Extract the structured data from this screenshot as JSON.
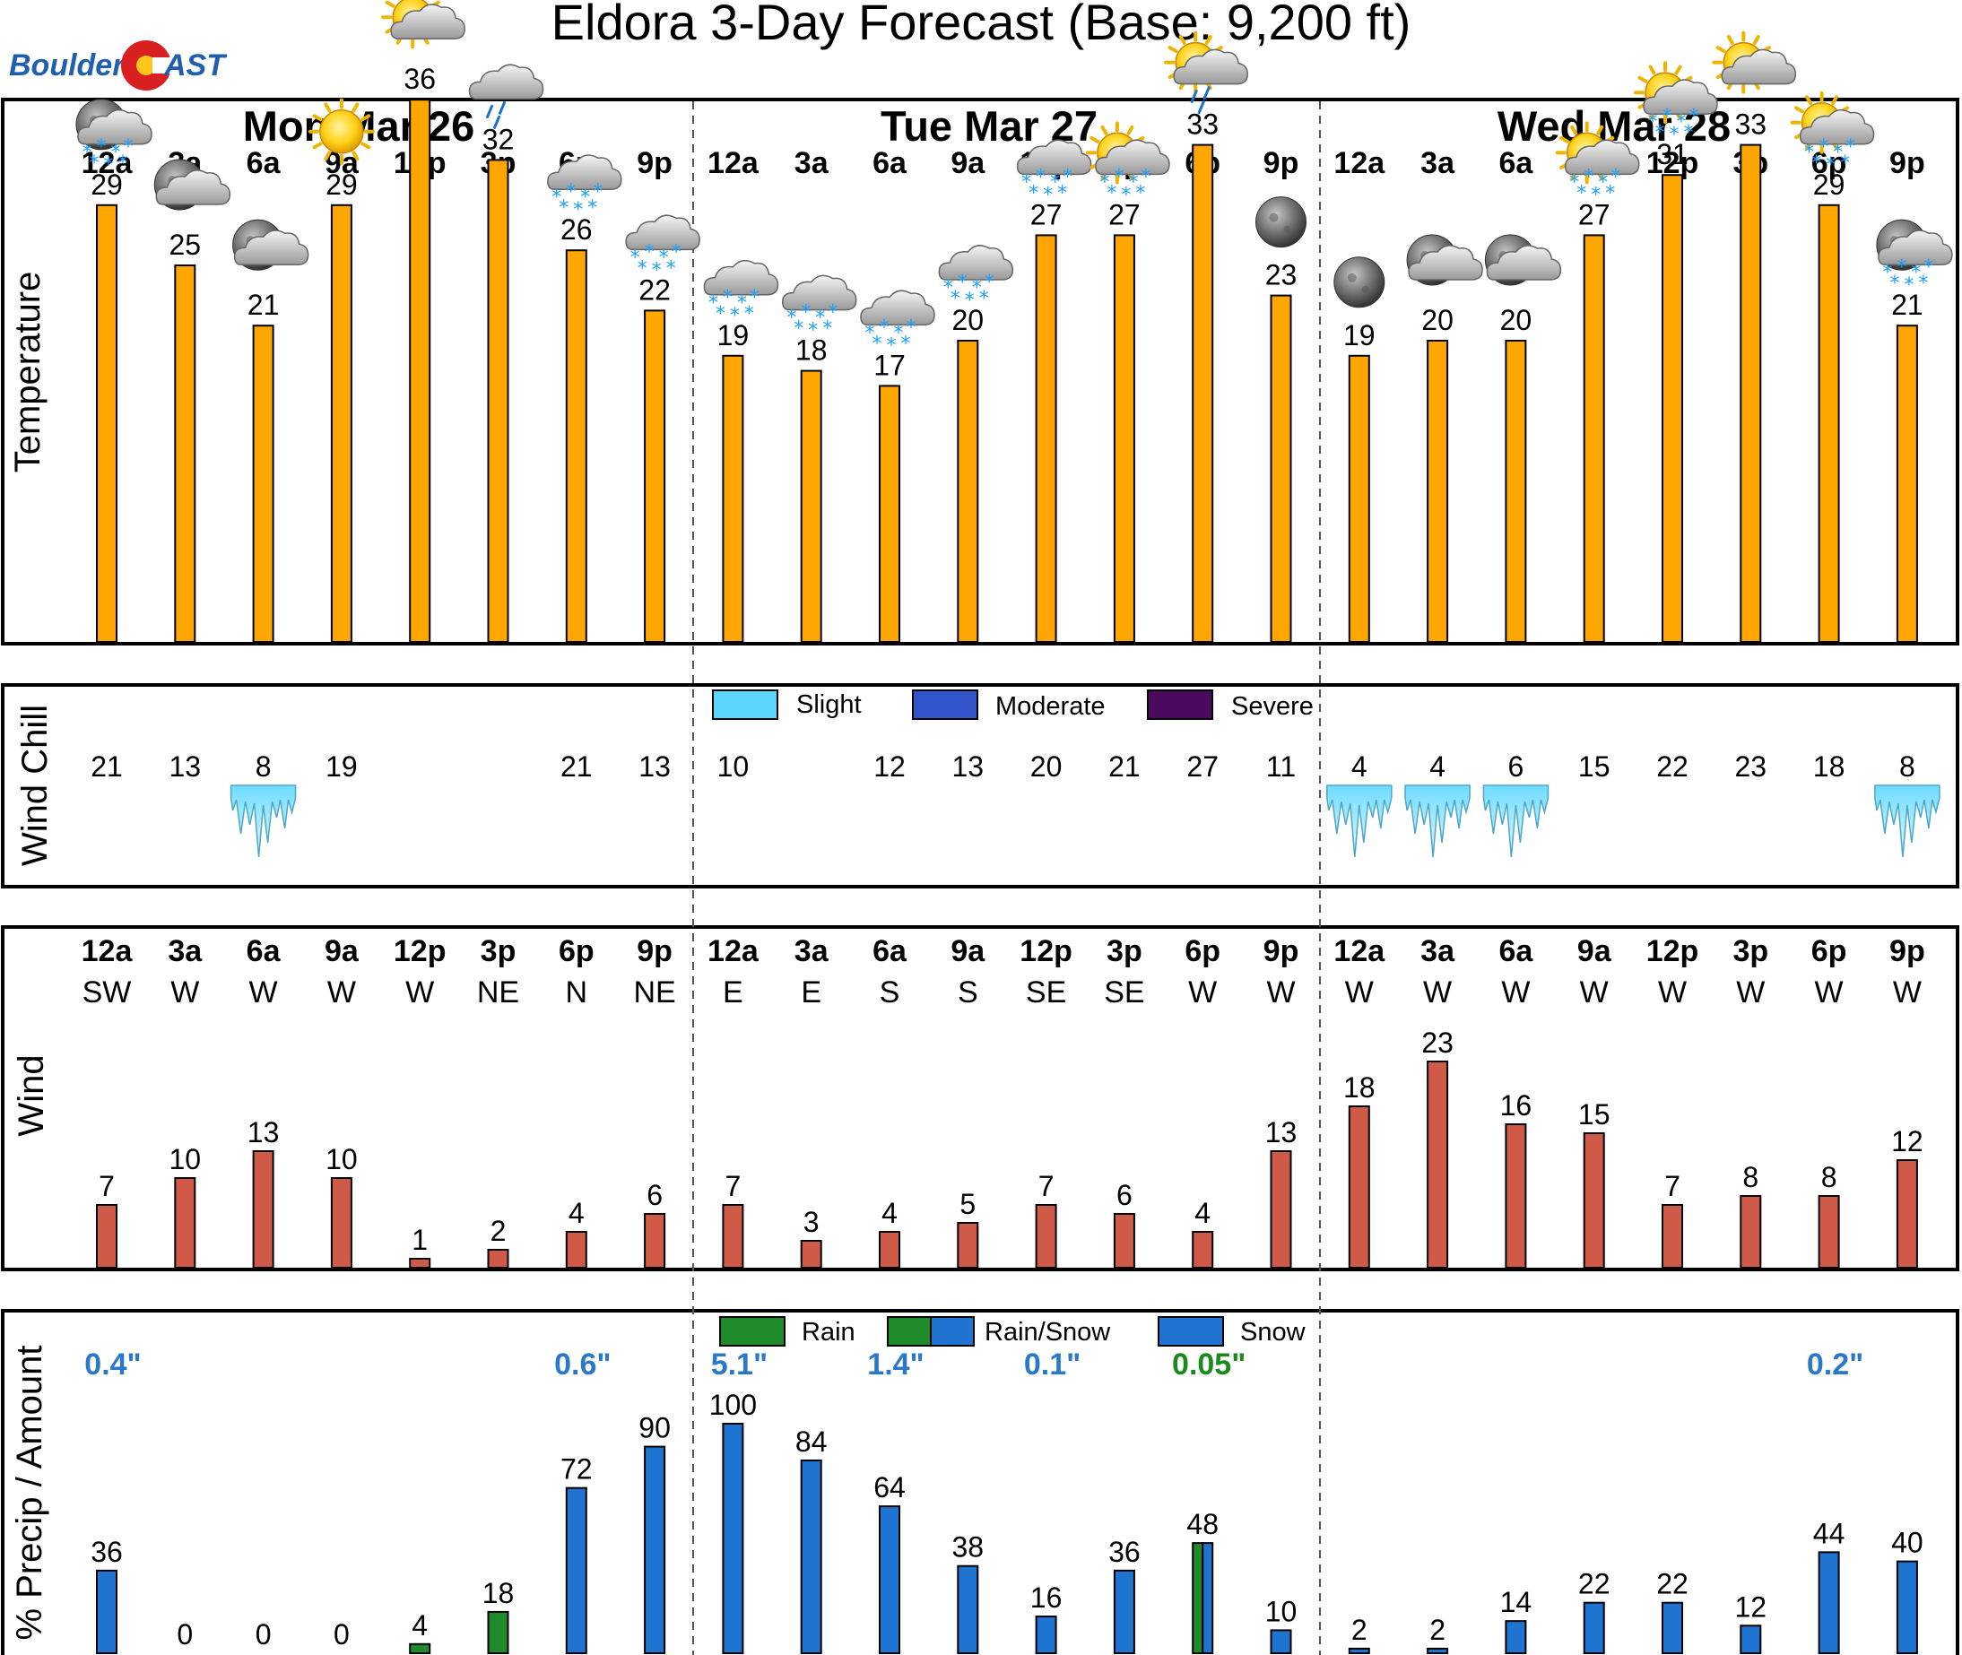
{
  "chart_data": {
    "type": "bar",
    "title": "Eldora 3-Day Forecast (Base: 9,200 ft)",
    "logo": {
      "text_left": "Boulder",
      "text_right": "AST"
    },
    "days": [
      "Mon  Mar 26",
      "Tue  Mar 27",
      "Wed  Mar 28"
    ],
    "hours": [
      "12a",
      "3a",
      "6a",
      "9a",
      "12p",
      "3p",
      "6p",
      "9p",
      "12a",
      "3a",
      "6a",
      "9a",
      "12p",
      "3p",
      "6p",
      "9p",
      "12a",
      "3a",
      "6a",
      "9a",
      "12p",
      "3p",
      "6p",
      "9p"
    ],
    "temperature": {
      "ylabel": "Temperature",
      "values": [
        29,
        25,
        21,
        29,
        36,
        32,
        26,
        22,
        19,
        18,
        17,
        20,
        27,
        27,
        33,
        23,
        19,
        20,
        20,
        27,
        31,
        33,
        29,
        21
      ],
      "icons": [
        "moon-cloud-snow",
        "moon-cloud",
        "moon-cloud",
        "sun",
        "sun-cloud",
        "cloud-rain",
        "cloud-snow",
        "cloud-snow",
        "cloud-snow",
        "cloud-snow",
        "cloud-snow",
        "cloud-snow",
        "cloud-snow",
        "sun-cloud-snow",
        "sun-cloud-rain",
        "moon",
        "moon",
        "moon-cloud",
        "moon-cloud",
        "sun-cloud-snow",
        "sun-cloud-snow",
        "sun-cloud",
        "sun-cloud-snow",
        "moon-cloud-snow"
      ]
    },
    "wind_chill": {
      "ylabel": "Wind Chill",
      "values": [
        "21",
        "13",
        "8",
        "19",
        "",
        "",
        "21",
        "13",
        "10",
        "",
        "12",
        "13",
        "20",
        "21",
        "27",
        "11",
        "4",
        "4",
        "6",
        "15",
        "22",
        "23",
        "18",
        "8"
      ],
      "severity": [
        "",
        "",
        "slight",
        "",
        "",
        "",
        "",
        "",
        "",
        "",
        "",
        "",
        "",
        "",
        "",
        "",
        "slight",
        "slight",
        "slight",
        "",
        "",
        "",
        "",
        "slight"
      ],
      "legend": [
        "Slight",
        "Moderate",
        "Severe"
      ],
      "colors": {
        "slight": "#5cd6ff",
        "moderate": "#3355cc",
        "severe": "#4a0a60"
      }
    },
    "wind": {
      "ylabel": "Wind",
      "directions": [
        "SW",
        "W",
        "W",
        "W",
        "W",
        "NE",
        "N",
        "NE",
        "E",
        "E",
        "S",
        "S",
        "SE",
        "SE",
        "W",
        "W",
        "W",
        "W",
        "W",
        "W",
        "W",
        "W",
        "W",
        "W"
      ],
      "values": [
        7,
        10,
        13,
        10,
        1,
        2,
        4,
        6,
        7,
        3,
        4,
        5,
        7,
        6,
        4,
        13,
        18,
        23,
        16,
        15,
        7,
        8,
        8,
        12
      ],
      "color": "#d05a48"
    },
    "precip": {
      "ylabel": "% Precip / Amount",
      "values": [
        36,
        0,
        0,
        0,
        4,
        18,
        72,
        90,
        100,
        84,
        64,
        38,
        16,
        36,
        48,
        10,
        2,
        2,
        14,
        22,
        22,
        12,
        44,
        40
      ],
      "types": [
        "snow",
        "snow",
        "snow",
        "snow",
        "rain",
        "rain",
        "snow",
        "snow",
        "snow",
        "snow",
        "snow",
        "snow",
        "snow",
        "snow",
        "mix",
        "snow",
        "snow",
        "snow",
        "snow",
        "snow",
        "snow",
        "snow",
        "snow",
        "snow"
      ],
      "amounts": [
        {
          "slot": 0,
          "text": "0.4\"",
          "color": "#2b78c8"
        },
        {
          "slot": 6,
          "text": "0.6\"",
          "color": "#2b78c8"
        },
        {
          "slot": 8,
          "text": "5.1\"",
          "color": "#2b78c8"
        },
        {
          "slot": 10,
          "text": "1.4\"",
          "color": "#2b78c8"
        },
        {
          "slot": 12,
          "text": "0.1\"",
          "color": "#2b78c8"
        },
        {
          "slot": 14,
          "text": "0.05\"",
          "color": "#1a8a1a"
        },
        {
          "slot": 22,
          "text": "0.2\"",
          "color": "#2b78c8"
        }
      ],
      "legend": [
        "Rain",
        "Rain/Snow",
        "Snow"
      ],
      "colors": {
        "rain": "#1f8a2a",
        "snow": "#1e74d0"
      }
    },
    "temp_bar_color": "#ffa600"
  }
}
